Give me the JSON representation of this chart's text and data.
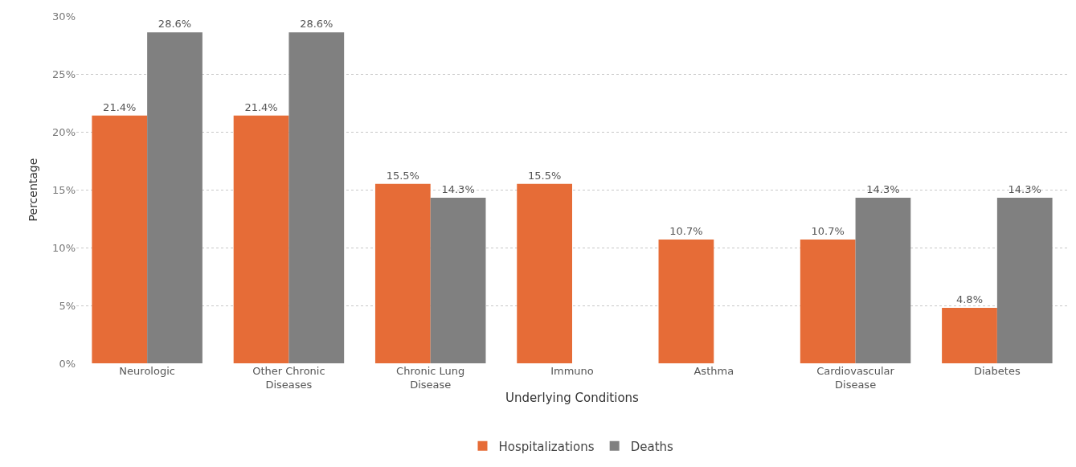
{
  "chart_data": {
    "type": "bar",
    "xlabel": "Underlying Conditions",
    "ylabel": "Percentage",
    "categories": [
      "Neurologic",
      "Other Chronic\nDiseases",
      "Chronic Lung\nDisease",
      "Immuno",
      "Asthma",
      "Cardiovascular\nDisease",
      "Diabetes"
    ],
    "series": [
      {
        "name": "Hospitalizations",
        "color": "#e66c37",
        "values": [
          21.4,
          21.4,
          15.5,
          15.5,
          10.7,
          10.7,
          4.8
        ],
        "value_labels": [
          "21.4%",
          "21.4%",
          "15.5%",
          "15.5%",
          "10.7%",
          "10.7%",
          "4.8%"
        ]
      },
      {
        "name": "Deaths",
        "color": "#808080",
        "values": [
          28.6,
          28.6,
          14.3,
          null,
          null,
          14.3,
          14.3
        ],
        "value_labels": [
          "28.6%",
          "28.6%",
          "14.3%",
          null,
          null,
          "14.3%",
          "14.3%"
        ]
      }
    ],
    "ylim": [
      0,
      30
    ],
    "yticks": [
      {
        "value": 0,
        "label": "0%"
      },
      {
        "value": 5,
        "label": "5%"
      },
      {
        "value": 10,
        "label": "10%"
      },
      {
        "value": 15,
        "label": "15%"
      },
      {
        "value": 20,
        "label": "20%"
      },
      {
        "value": 25,
        "label": "25%"
      },
      {
        "value": 30,
        "label": "30%"
      }
    ],
    "grid": "y",
    "legend": "bottom"
  }
}
